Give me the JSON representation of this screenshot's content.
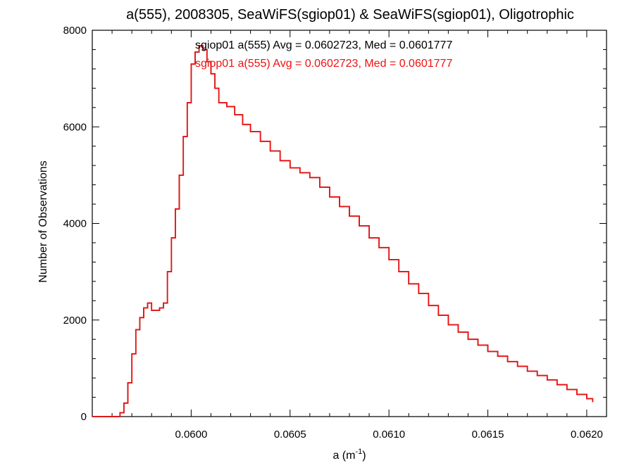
{
  "chart_data": {
    "type": "line",
    "style": "histogram-step",
    "title": "a(555), 2008305, SeaWiFS(sgiop01) & SeaWiFS(sgiop01), Oligotrophic",
    "xlabel": "a (m",
    "xlabel_sup": "-1",
    "xlabel_suffix": ")",
    "ylabel": "Number of Observations",
    "xlim": [
      0.0595,
      0.0621
    ],
    "ylim": [
      0,
      8000
    ],
    "x_ticks": [
      0.06,
      0.0605,
      0.061,
      0.0615,
      0.062
    ],
    "x_tick_labels": [
      "0.0600",
      "0.0605",
      "0.0610",
      "0.0615",
      "0.0620"
    ],
    "y_ticks": [
      0,
      2000,
      4000,
      6000,
      8000
    ],
    "y_tick_labels": [
      "0",
      "2000",
      "4000",
      "6000",
      "8000"
    ],
    "grid": false,
    "legend_position": "top",
    "colors": {
      "series_0": "#000000",
      "series_1": "#ee1111",
      "axes": "#000000"
    },
    "series": [
      {
        "name": "sgiop01 a(555) Avg = 0.0602723, Med = 0.0601777",
        "color": "#000000",
        "points": [
          [
            0.0595,
            0
          ],
          [
            0.05962,
            0
          ],
          [
            0.05964,
            80
          ],
          [
            0.05966,
            280
          ],
          [
            0.05968,
            700
          ],
          [
            0.0597,
            1300
          ],
          [
            0.05972,
            1800
          ],
          [
            0.05974,
            2050
          ],
          [
            0.05976,
            2250
          ],
          [
            0.05978,
            2350
          ],
          [
            0.0598,
            2200
          ],
          [
            0.05982,
            2200
          ],
          [
            0.05984,
            2250
          ],
          [
            0.05986,
            2350
          ],
          [
            0.05988,
            3000
          ],
          [
            0.0599,
            3700
          ],
          [
            0.05992,
            4300
          ],
          [
            0.05994,
            5000
          ],
          [
            0.05996,
            5800
          ],
          [
            0.05998,
            6500
          ],
          [
            0.06,
            7300
          ],
          [
            0.06002,
            7550
          ],
          [
            0.06004,
            7680
          ],
          [
            0.06006,
            7600
          ],
          [
            0.06008,
            7350
          ],
          [
            0.0601,
            7100
          ],
          [
            0.06012,
            6800
          ],
          [
            0.06014,
            6500
          ],
          [
            0.06018,
            6420
          ],
          [
            0.06022,
            6250
          ],
          [
            0.06026,
            6050
          ],
          [
            0.0603,
            5900
          ],
          [
            0.06035,
            5700
          ],
          [
            0.0604,
            5500
          ],
          [
            0.06045,
            5300
          ],
          [
            0.0605,
            5150
          ],
          [
            0.06055,
            5050
          ],
          [
            0.0606,
            4950
          ],
          [
            0.06065,
            4750
          ],
          [
            0.0607,
            4550
          ],
          [
            0.06075,
            4350
          ],
          [
            0.0608,
            4150
          ],
          [
            0.06085,
            3950
          ],
          [
            0.0609,
            3700
          ],
          [
            0.06095,
            3500
          ],
          [
            0.061,
            3250
          ],
          [
            0.06105,
            3000
          ],
          [
            0.0611,
            2750
          ],
          [
            0.06115,
            2550
          ],
          [
            0.0612,
            2300
          ],
          [
            0.06125,
            2100
          ],
          [
            0.0613,
            1900
          ],
          [
            0.06135,
            1750
          ],
          [
            0.0614,
            1600
          ],
          [
            0.06145,
            1480
          ],
          [
            0.0615,
            1350
          ],
          [
            0.06155,
            1250
          ],
          [
            0.0616,
            1140
          ],
          [
            0.06165,
            1040
          ],
          [
            0.0617,
            940
          ],
          [
            0.06175,
            850
          ],
          [
            0.0618,
            760
          ],
          [
            0.06185,
            660
          ],
          [
            0.0619,
            560
          ],
          [
            0.06195,
            460
          ],
          [
            0.062,
            370
          ],
          [
            0.06203,
            300
          ]
        ]
      },
      {
        "name": "sgiop01 a(555) Avg = 0.0602723, Med = 0.0601777",
        "color": "#ee1111",
        "points": [
          [
            0.0595,
            0
          ],
          [
            0.05962,
            0
          ],
          [
            0.05964,
            80
          ],
          [
            0.05966,
            280
          ],
          [
            0.05968,
            700
          ],
          [
            0.0597,
            1300
          ],
          [
            0.05972,
            1800
          ],
          [
            0.05974,
            2050
          ],
          [
            0.05976,
            2250
          ],
          [
            0.05978,
            2350
          ],
          [
            0.0598,
            2200
          ],
          [
            0.05982,
            2200
          ],
          [
            0.05984,
            2250
          ],
          [
            0.05986,
            2350
          ],
          [
            0.05988,
            3000
          ],
          [
            0.0599,
            3700
          ],
          [
            0.05992,
            4300
          ],
          [
            0.05994,
            5000
          ],
          [
            0.05996,
            5800
          ],
          [
            0.05998,
            6500
          ],
          [
            0.06,
            7300
          ],
          [
            0.06002,
            7550
          ],
          [
            0.06004,
            7680
          ],
          [
            0.06006,
            7600
          ],
          [
            0.06008,
            7350
          ],
          [
            0.0601,
            7100
          ],
          [
            0.06012,
            6800
          ],
          [
            0.06014,
            6500
          ],
          [
            0.06018,
            6420
          ],
          [
            0.06022,
            6250
          ],
          [
            0.06026,
            6050
          ],
          [
            0.0603,
            5900
          ],
          [
            0.06035,
            5700
          ],
          [
            0.0604,
            5500
          ],
          [
            0.06045,
            5300
          ],
          [
            0.0605,
            5150
          ],
          [
            0.06055,
            5050
          ],
          [
            0.0606,
            4950
          ],
          [
            0.06065,
            4750
          ],
          [
            0.0607,
            4550
          ],
          [
            0.06075,
            4350
          ],
          [
            0.0608,
            4150
          ],
          [
            0.06085,
            3950
          ],
          [
            0.0609,
            3700
          ],
          [
            0.06095,
            3500
          ],
          [
            0.061,
            3250
          ],
          [
            0.06105,
            3000
          ],
          [
            0.0611,
            2750
          ],
          [
            0.06115,
            2550
          ],
          [
            0.0612,
            2300
          ],
          [
            0.06125,
            2100
          ],
          [
            0.0613,
            1900
          ],
          [
            0.06135,
            1750
          ],
          [
            0.0614,
            1600
          ],
          [
            0.06145,
            1480
          ],
          [
            0.0615,
            1350
          ],
          [
            0.06155,
            1250
          ],
          [
            0.0616,
            1140
          ],
          [
            0.06165,
            1040
          ],
          [
            0.0617,
            940
          ],
          [
            0.06175,
            850
          ],
          [
            0.0618,
            760
          ],
          [
            0.06185,
            660
          ],
          [
            0.0619,
            560
          ],
          [
            0.06195,
            460
          ],
          [
            0.062,
            370
          ],
          [
            0.06203,
            300
          ]
        ]
      }
    ]
  }
}
